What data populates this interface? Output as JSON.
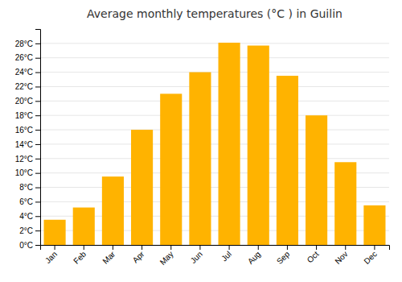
{
  "chart_data": {
    "type": "bar",
    "title": "Average monthly temperatures (°C ) in Guilin",
    "categories": [
      "Jan",
      "Feb",
      "Mar",
      "Apr",
      "May",
      "Jun",
      "Jul",
      "Aug",
      "Sep",
      "Oct",
      "Nov",
      "Dec"
    ],
    "values": [
      3.5,
      5.2,
      9.5,
      16.0,
      21.0,
      24.0,
      28.1,
      27.7,
      23.5,
      18.0,
      11.5,
      5.5
    ],
    "color": "#FFB300",
    "ylim": [
      0,
      30
    ],
    "yticks": [
      {
        "value": 0,
        "label": "0°C"
      },
      {
        "value": 2,
        "label": "2°C"
      },
      {
        "value": 4,
        "label": "4°C"
      },
      {
        "value": 6,
        "label": "6°C"
      },
      {
        "value": 8,
        "label": "8°C"
      },
      {
        "value": 10,
        "label": "10°C"
      },
      {
        "value": 12,
        "label": "12°C"
      },
      {
        "value": 14,
        "label": "14°C"
      },
      {
        "value": 16,
        "label": "16°C"
      },
      {
        "value": 18,
        "label": "18°C"
      },
      {
        "value": 20,
        "label": "20°C"
      },
      {
        "value": 22,
        "label": "22°C"
      },
      {
        "value": 24,
        "label": "24°C"
      },
      {
        "value": 26,
        "label": "26°C"
      },
      {
        "value": 28,
        "label": "28°C"
      }
    ],
    "grid": true
  }
}
